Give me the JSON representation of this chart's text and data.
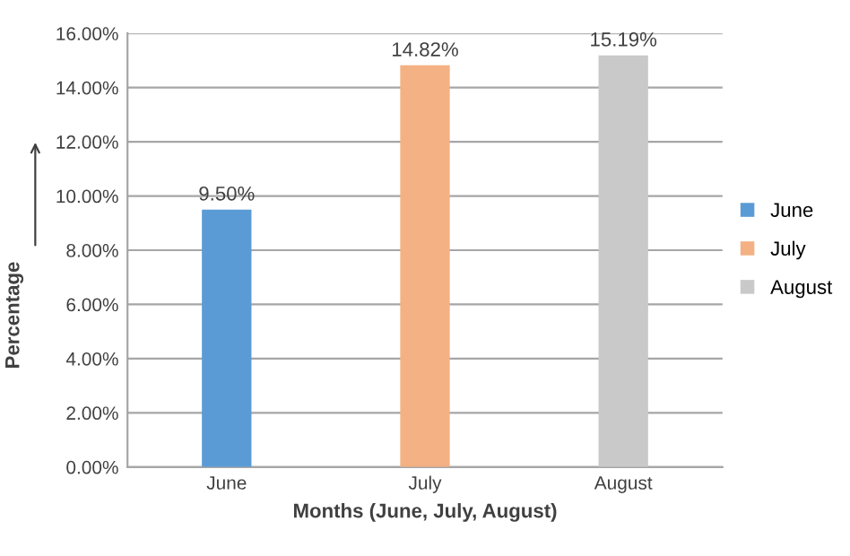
{
  "chart_data": {
    "type": "bar",
    "xlabel": "Months (June, July, August)",
    "ylabel": "Percentage",
    "categories": [
      "June",
      "July",
      "August"
    ],
    "series": [
      {
        "name": "June",
        "color": "#5b9bd5",
        "values": [
          9.5,
          null,
          null
        ],
        "value_labels": [
          "9.50%",
          null,
          null
        ]
      },
      {
        "name": "July",
        "color": "#f4b183",
        "values": [
          null,
          14.82,
          null
        ],
        "value_labels": [
          null,
          "14.82%",
          null
        ]
      },
      {
        "name": "August",
        "color": "#c9c9c9",
        "values": [
          null,
          null,
          15.19
        ],
        "value_labels": [
          null,
          null,
          "15.19%"
        ]
      }
    ],
    "ylim": [
      0,
      16
    ],
    "yticks": [
      {
        "value": 0,
        "label": "0.00%"
      },
      {
        "value": 2,
        "label": "2.00%"
      },
      {
        "value": 4,
        "label": "4.00%"
      },
      {
        "value": 6,
        "label": "6.00%"
      },
      {
        "value": 8,
        "label": "8.00%"
      },
      {
        "value": 10,
        "label": "10.00%"
      },
      {
        "value": 12,
        "label": "12.00%"
      },
      {
        "value": 14,
        "label": "14.00%"
      },
      {
        "value": 16,
        "label": "16.00%"
      }
    ],
    "grid": "y",
    "legend": "right"
  }
}
